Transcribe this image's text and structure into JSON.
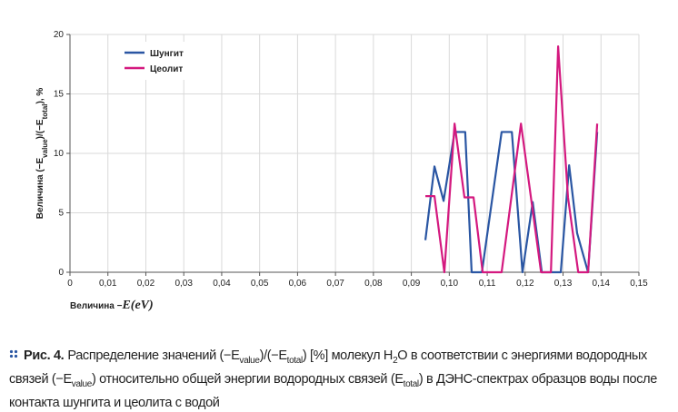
{
  "chart_data": {
    "type": "line",
    "y_label": [
      {
        "text": "Величина (−E"
      },
      {
        "sub": "value"
      },
      {
        "text": ")/(−E"
      },
      {
        "sub": "total"
      },
      {
        "text": "), %"
      }
    ],
    "x_label": [
      {
        "text": "Величина −"
      },
      {
        "italic": "E(eV)"
      }
    ],
    "xlim": [
      0,
      0.15
    ],
    "xticks": [
      0,
      {
        "value": 0.01,
        "label": "0,01"
      },
      {
        "value": 0.02,
        "label": "0,02"
      },
      {
        "value": 0.03,
        "label": "0,03"
      },
      {
        "value": 0.04,
        "label": "0,04"
      },
      {
        "value": 0.05,
        "label": "0,05"
      },
      {
        "value": 0.06,
        "label": "0,06"
      },
      {
        "value": 0.07,
        "label": "0,07"
      },
      {
        "value": 0.08,
        "label": "0,08"
      },
      {
        "value": 0.09,
        "label": "0,09"
      },
      {
        "value": 0.1,
        "label": "0,10"
      },
      {
        "value": 0.11,
        "label": "0,11"
      },
      {
        "value": 0.12,
        "label": "0,12"
      },
      {
        "value": 0.13,
        "label": "0,13"
      },
      {
        "value": 0.14,
        "label": "0,14"
      },
      {
        "value": 0.15,
        "label": "0,15"
      }
    ],
    "ylim": [
      0,
      20
    ],
    "yticks": [
      0,
      5,
      10,
      15,
      20
    ],
    "grid": true,
    "legend": "upper left",
    "series": [
      {
        "name": "Шунгит",
        "color": "#2a56a3",
        "x": [
          0.0937,
          0.0961,
          0.0985,
          0.1014,
          0.1042,
          0.1059,
          0.1086,
          0.1138,
          0.1165,
          0.1193,
          0.122,
          0.1244,
          0.1268,
          0.1294,
          0.1316,
          0.1337,
          0.1366,
          0.139
        ],
        "values": [
          2.7,
          8.9,
          6.0,
          11.8,
          11.8,
          0,
          0,
          11.8,
          11.8,
          0,
          5.9,
          0,
          0,
          0,
          9.0,
          3.3,
          0,
          11.8
        ]
      },
      {
        "name": "Цеолит",
        "color": "#d4197f",
        "x": [
          0.0937,
          0.0961,
          0.0987,
          0.1014,
          0.104,
          0.1064,
          0.1088,
          0.1138,
          0.1189,
          0.1242,
          0.1268,
          0.1287,
          0.1313,
          0.134,
          0.1366,
          0.139
        ],
        "values": [
          6.4,
          6.4,
          0,
          12.5,
          6.3,
          6.3,
          0,
          0,
          12.5,
          0,
          0,
          19.0,
          6.3,
          0,
          0,
          12.5
        ]
      }
    ]
  },
  "caption": {
    "label": "Рис. 4.",
    "parts": [
      {
        "text": "Распределение значений (−E"
      },
      {
        "sub": "value"
      },
      {
        "text": ")/(−E"
      },
      {
        "sub": "total"
      },
      {
        "text": ") [%] молекул H"
      },
      {
        "sub": "2"
      },
      {
        "text": "O в соответствии с энергиями водородных связей (−E"
      },
      {
        "sub": "value"
      },
      {
        "text": ") относительно общей энергии водородных связей (E"
      },
      {
        "sub": "total"
      },
      {
        "text": ") в ДЭНС-спектрах образцов воды после контакта шунгита и цеолита с водой"
      }
    ]
  }
}
